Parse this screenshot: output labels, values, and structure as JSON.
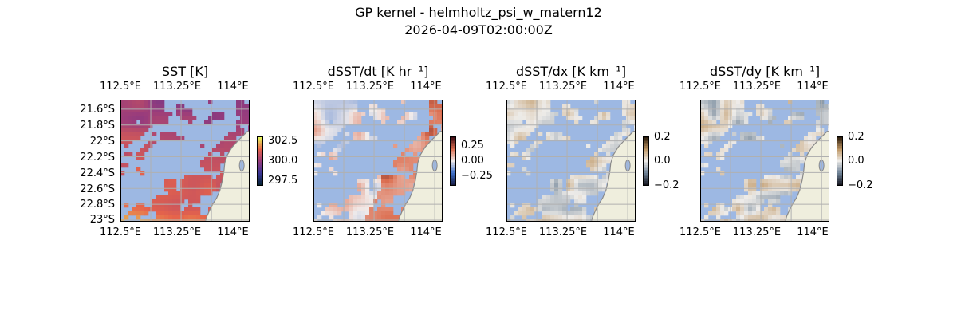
{
  "figure": {
    "title_line1": "GP kernel - helmholtz_psi_w_matern12",
    "title_line2": "2026-04-09T02:00:00Z"
  },
  "colors": {
    "ocean_mask": "#9db8e3",
    "land": "#efeedd",
    "coast": "#8a8a8a",
    "grid": "#b0b0b0"
  },
  "chart_data": [
    {
      "type": "heatmap",
      "title": "SST [K]",
      "colormap": "thermal",
      "x_ticks": [
        "112.5°E",
        "113.25°E",
        "114°E"
      ],
      "y_ticks": [
        "21.6°S",
        "21.8°S",
        "22°S",
        "22.2°S",
        "22.4°S",
        "22.6°S",
        "22.8°S",
        "23°S"
      ],
      "colorbar_ticks": [
        "302.5",
        "300.0",
        "297.5"
      ],
      "colorbar_range": [
        296.5,
        303.5
      ]
    },
    {
      "type": "heatmap",
      "title": "dSST/dt [K hr⁻¹]",
      "colormap": "balance",
      "x_ticks": [
        "112.5°E",
        "113.25°E",
        "114°E"
      ],
      "colorbar_ticks": [
        "0.25",
        "0.00",
        "−0.25"
      ],
      "colorbar_range": [
        -0.4,
        0.4
      ]
    },
    {
      "type": "heatmap",
      "title": "dSST/dx [K km⁻¹]",
      "colormap": "diverging-dark",
      "x_ticks": [
        "112.5°E",
        "113.25°E",
        "114°E"
      ],
      "colorbar_ticks": [
        "0.2",
        "0.0",
        "−0.2"
      ],
      "colorbar_range": [
        -0.2,
        0.2
      ]
    },
    {
      "type": "heatmap",
      "title": "dSST/dy [K km⁻¹]",
      "colormap": "diverging-dark",
      "x_ticks": [
        "112.5°E",
        "113.25°E",
        "114°E"
      ],
      "colorbar_ticks": [
        "0.2",
        "0.0",
        "−0.2"
      ],
      "colorbar_range": [
        -0.2,
        0.2
      ]
    }
  ]
}
